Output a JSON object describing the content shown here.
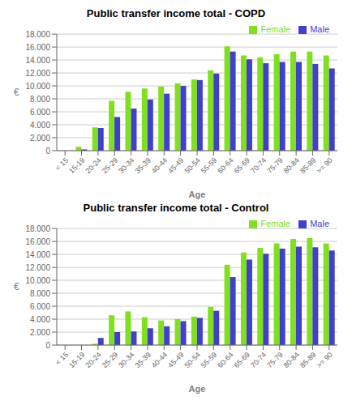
{
  "chart_data": [
    {
      "type": "bar",
      "title": "Public transfer income total - COPD",
      "xlabel": "Age",
      "ylabel": "€",
      "categories": [
        "< 15",
        "15-19",
        "20-24",
        "25-29",
        "30-34",
        "35-39",
        "40-44",
        "45-49",
        "50-54",
        "55-59",
        "60-64",
        "65-69",
        "70-74",
        "75-79",
        "80-84",
        "85-89",
        ">= 90"
      ],
      "series": [
        {
          "name": "Female",
          "color": "#80e020",
          "values": [
            0,
            600,
            3600,
            7700,
            9100,
            9600,
            9900,
            10400,
            11000,
            12400,
            16100,
            14700,
            14400,
            14900,
            15300,
            15300,
            14700
          ]
        },
        {
          "name": "Male",
          "color": "#4040cc",
          "values": [
            0,
            200,
            3500,
            5200,
            6500,
            7900,
            8800,
            10000,
            10900,
            11900,
            15300,
            14100,
            13500,
            13700,
            13700,
            13400,
            12700
          ]
        }
      ],
      "ylim": [
        0,
        18000
      ],
      "yticks": [
        0,
        {
          "value": 2000,
          "label": "2.000"
        },
        {
          "value": 4000,
          "label": "4.000"
        },
        {
          "value": 6000,
          "label": "6.000"
        },
        {
          "value": 8000,
          "label": "8.000"
        },
        {
          "value": 10000,
          "label": "10.000"
        },
        {
          "value": 12000,
          "label": "12.000"
        },
        {
          "value": 14000,
          "label": "14.000"
        },
        {
          "value": 16000,
          "label": "16.000"
        },
        {
          "value": 18000,
          "label": "18.000"
        }
      ],
      "grid": true,
      "legend": "upper right"
    },
    {
      "type": "bar",
      "title": "Public transfer income total - Control",
      "xlabel": "Age",
      "ylabel": "€",
      "categories": [
        "< 15",
        "15-19",
        "20-24",
        "25-29",
        "30-34",
        "35-39",
        "40-44",
        "45-49",
        "50-54",
        "55-59",
        "60-64",
        "65-69",
        "70-74",
        "75-79",
        "80-84",
        "85-89",
        ">= 90"
      ],
      "series": [
        {
          "name": "Female",
          "color": "#80e020",
          "values": [
            0,
            0,
            200,
            4600,
            5200,
            4300,
            3800,
            4000,
            4400,
            5900,
            12400,
            14300,
            15000,
            15700,
            16400,
            16500,
            15700
          ]
        },
        {
          "name": "Male",
          "color": "#4040cc",
          "values": [
            0,
            0,
            1100,
            2000,
            2100,
            2600,
            2900,
            3700,
            4200,
            5300,
            10500,
            13200,
            14100,
            14900,
            15200,
            15100,
            14600
          ]
        }
      ],
      "ylim": [
        0,
        18000
      ],
      "yticks": [
        0,
        {
          "value": 2000,
          "label": "2.000"
        },
        {
          "value": 4000,
          "label": "4.000"
        },
        {
          "value": 6000,
          "label": "6.000"
        },
        {
          "value": 8000,
          "label": "8.000"
        },
        {
          "value": 10000,
          "label": "10.000"
        },
        {
          "value": 12000,
          "label": "12.000"
        },
        {
          "value": 14000,
          "label": "14.000"
        },
        {
          "value": 16000,
          "label": "16.000"
        },
        {
          "value": 18000,
          "label": "18.000"
        }
      ],
      "grid": true,
      "legend": "upper right"
    }
  ]
}
